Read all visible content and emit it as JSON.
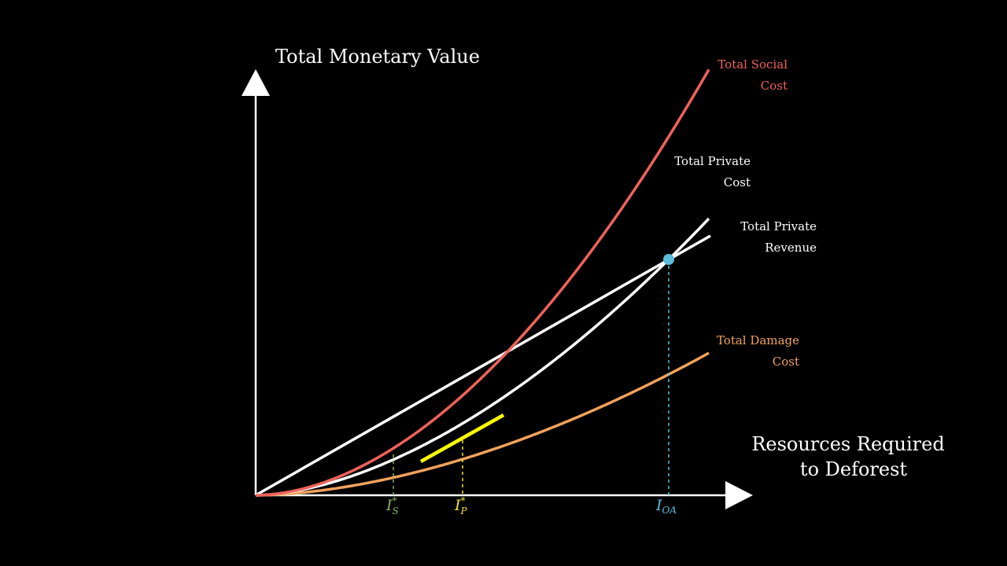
{
  "y_axis_title": "Total Monetary Value",
  "x_axis_title": [
    "Resources Required",
    "to Deforest"
  ],
  "curves": {
    "social_cost": {
      "label": [
        "Total Social",
        "Cost"
      ],
      "color": "#f0625a"
    },
    "private_cost": {
      "label": [
        "Total Private",
        "Cost"
      ],
      "color": "#ffffff"
    },
    "private_revenue": {
      "label": [
        "Total Private",
        "Revenue"
      ],
      "color": "#ffffff"
    },
    "damage_cost": {
      "label": [
        "Total Damage",
        "Cost"
      ],
      "color": "#f2a25c"
    }
  },
  "markers": {
    "is": {
      "main": "I",
      "sup": "*",
      "sub": "S",
      "color": "#86b25c"
    },
    "ip": {
      "main": "I",
      "sup": "*",
      "sub": "P",
      "color": "#ece33a"
    },
    "ioa": {
      "main": "I",
      "sub": "OA",
      "color": "#5bbcdc"
    }
  },
  "tangent_color": "#ffff00",
  "axis_color": "#ffffff"
}
